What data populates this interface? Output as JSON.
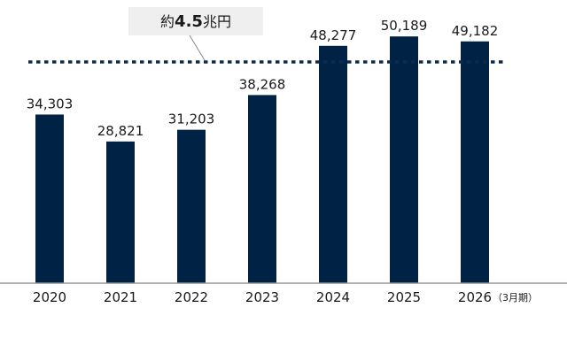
{
  "chart_data": {
    "type": "bar",
    "categories": [
      "2020",
      "2021",
      "2022",
      "2023",
      "2024",
      "2025",
      "2026"
    ],
    "values": [
      34303,
      28821,
      31203,
      38268,
      48277,
      50189,
      49182
    ],
    "value_labels": [
      "34,303",
      "28,821",
      "31,203",
      "38,268",
      "48,277",
      "50,189",
      "49,182"
    ],
    "last_category_suffix": "（3月期）",
    "ylim": [
      0,
      54000
    ],
    "reference_line": {
      "value": 45000,
      "style": "dotted"
    },
    "annotation": {
      "prefix": "約",
      "value": "4.5",
      "unit": "兆円"
    },
    "grid": false,
    "colors": {
      "bar": "#002244",
      "reference_line": "#0d2a4a",
      "annotation_box": "#efefef"
    }
  }
}
